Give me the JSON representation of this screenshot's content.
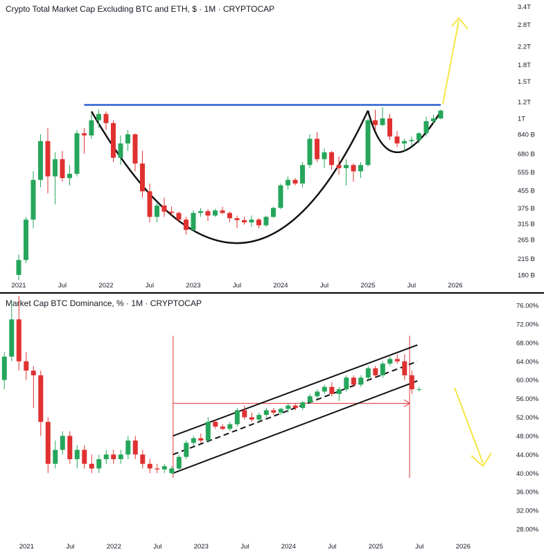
{
  "chart_data": [
    {
      "type": "candlestick",
      "title": "Crypto Total Market Cap Excluding BTC and ETH, $ · 1M · CRYPTOCAP",
      "scale": "log",
      "y_ticks": [
        {
          "label": "3.4T",
          "value": 3400
        },
        {
          "label": "2.8T",
          "value": 2800
        },
        {
          "label": "2.2T",
          "value": 2200
        },
        {
          "label": "1.8T",
          "value": 1800
        },
        {
          "label": "1.5T",
          "value": 1500
        },
        {
          "label": "1.2T",
          "value": 1200
        },
        {
          "label": "1T",
          "value": 1000
        },
        {
          "label": "840 B",
          "value": 840
        },
        {
          "label": "680 B",
          "value": 680
        },
        {
          "label": "555 B",
          "value": 555
        },
        {
          "label": "455 B",
          "value": 455
        },
        {
          "label": "375 B",
          "value": 375
        },
        {
          "label": "315 B",
          "value": 315
        },
        {
          "label": "265 B",
          "value": 265
        },
        {
          "label": "215 B",
          "value": 215
        },
        {
          "label": "180 B",
          "value": 180
        }
      ],
      "x_ticks": [
        {
          "label": "2021",
          "month": 0
        },
        {
          "label": "Jul",
          "month": 6
        },
        {
          "label": "2022",
          "month": 12
        },
        {
          "label": "Jul",
          "month": 18
        },
        {
          "label": "2023",
          "month": 24
        },
        {
          "label": "Jul",
          "month": 30
        },
        {
          "label": "2024",
          "month": 36
        },
        {
          "label": "Jul",
          "month": 42
        },
        {
          "label": "2025",
          "month": 48
        },
        {
          "label": "Jul",
          "month": 54
        },
        {
          "label": "2026",
          "month": 60
        }
      ],
      "up_color": "#26a65b",
      "down_color": "#e03131",
      "candles": [
        {
          "o": 180,
          "h": 225,
          "l": 170,
          "c": 212
        },
        {
          "o": 212,
          "h": 340,
          "l": 205,
          "c": 330
        },
        {
          "o": 330,
          "h": 560,
          "l": 300,
          "c": 510
        },
        {
          "o": 510,
          "h": 840,
          "l": 470,
          "c": 780
        },
        {
          "o": 780,
          "h": 900,
          "l": 440,
          "c": 530
        },
        {
          "o": 530,
          "h": 690,
          "l": 390,
          "c": 640
        },
        {
          "o": 640,
          "h": 700,
          "l": 500,
          "c": 520
        },
        {
          "o": 520,
          "h": 600,
          "l": 480,
          "c": 545
        },
        {
          "o": 545,
          "h": 880,
          "l": 530,
          "c": 850
        },
        {
          "o": 850,
          "h": 900,
          "l": 680,
          "c": 830
        },
        {
          "o": 830,
          "h": 1050,
          "l": 800,
          "c": 980
        },
        {
          "o": 980,
          "h": 1100,
          "l": 900,
          "c": 1050
        },
        {
          "o": 1050,
          "h": 1080,
          "l": 880,
          "c": 950
        },
        {
          "o": 950,
          "h": 980,
          "l": 620,
          "c": 650
        },
        {
          "o": 650,
          "h": 830,
          "l": 600,
          "c": 760
        },
        {
          "o": 760,
          "h": 880,
          "l": 700,
          "c": 840
        },
        {
          "o": 840,
          "h": 850,
          "l": 560,
          "c": 610
        },
        {
          "o": 610,
          "h": 700,
          "l": 420,
          "c": 450
        },
        {
          "o": 450,
          "h": 490,
          "l": 320,
          "c": 340
        },
        {
          "o": 340,
          "h": 400,
          "l": 320,
          "c": 385
        },
        {
          "o": 385,
          "h": 420,
          "l": 340,
          "c": 360
        },
        {
          "o": 360,
          "h": 380,
          "l": 345,
          "c": 355
        },
        {
          "o": 355,
          "h": 360,
          "l": 320,
          "c": 330
        },
        {
          "o": 330,
          "h": 340,
          "l": 280,
          "c": 295
        },
        {
          "o": 295,
          "h": 365,
          "l": 290,
          "c": 355
        },
        {
          "o": 355,
          "h": 375,
          "l": 340,
          "c": 362
        },
        {
          "o": 362,
          "h": 370,
          "l": 325,
          "c": 345
        },
        {
          "o": 345,
          "h": 372,
          "l": 340,
          "c": 365
        },
        {
          "o": 365,
          "h": 380,
          "l": 350,
          "c": 355
        },
        {
          "o": 355,
          "h": 360,
          "l": 320,
          "c": 335
        },
        {
          "o": 335,
          "h": 345,
          "l": 300,
          "c": 328
        },
        {
          "o": 328,
          "h": 340,
          "l": 312,
          "c": 320
        },
        {
          "o": 320,
          "h": 345,
          "l": 305,
          "c": 330
        },
        {
          "o": 330,
          "h": 335,
          "l": 300,
          "c": 310
        },
        {
          "o": 310,
          "h": 345,
          "l": 305,
          "c": 340
        },
        {
          "o": 340,
          "h": 380,
          "l": 335,
          "c": 375
        },
        {
          "o": 375,
          "h": 490,
          "l": 370,
          "c": 480
        },
        {
          "o": 480,
          "h": 530,
          "l": 460,
          "c": 510
        },
        {
          "o": 510,
          "h": 520,
          "l": 480,
          "c": 490
        },
        {
          "o": 490,
          "h": 620,
          "l": 470,
          "c": 600
        },
        {
          "o": 600,
          "h": 840,
          "l": 580,
          "c": 800
        },
        {
          "o": 800,
          "h": 860,
          "l": 620,
          "c": 640
        },
        {
          "o": 640,
          "h": 720,
          "l": 580,
          "c": 690
        },
        {
          "o": 690,
          "h": 700,
          "l": 570,
          "c": 600
        },
        {
          "o": 600,
          "h": 660,
          "l": 540,
          "c": 580
        },
        {
          "o": 580,
          "h": 640,
          "l": 480,
          "c": 600
        },
        {
          "o": 600,
          "h": 610,
          "l": 500,
          "c": 560
        },
        {
          "o": 560,
          "h": 620,
          "l": 520,
          "c": 600
        },
        {
          "o": 600,
          "h": 1000,
          "l": 590,
          "c": 980
        },
        {
          "o": 980,
          "h": 1100,
          "l": 880,
          "c": 930
        },
        {
          "o": 930,
          "h": 1130,
          "l": 920,
          "c": 1000
        },
        {
          "o": 1000,
          "h": 1050,
          "l": 790,
          "c": 820
        },
        {
          "o": 820,
          "h": 870,
          "l": 730,
          "c": 760
        },
        {
          "o": 760,
          "h": 800,
          "l": 700,
          "c": 780
        },
        {
          "o": 780,
          "h": 820,
          "l": 740,
          "c": 790
        },
        {
          "o": 790,
          "h": 860,
          "l": 760,
          "c": 850
        },
        {
          "o": 850,
          "h": 1020,
          "l": 820,
          "c": 970
        },
        {
          "o": 970,
          "h": 1040,
          "l": 940,
          "c": 1000
        },
        {
          "o": 1000,
          "h": 1100,
          "l": 990,
          "c": 1090
        }
      ],
      "annotations": {
        "resistance_line": {
          "value": 1160,
          "from_month": 9,
          "to_month": 58,
          "color": "#2a5fd4"
        },
        "cup_curve": {
          "from_month": 10,
          "bottom_month": 30,
          "to_month": 48,
          "start_value": 1080,
          "bottom_value": 255,
          "end_value": 1090
        },
        "handle_curve": {
          "from_month": 48,
          "bottom_month": 52,
          "to_month": 58,
          "start_value": 1090,
          "bottom_value": 690,
          "end_value": 1080
        },
        "arrow_color": "#f5e642"
      }
    },
    {
      "type": "candlestick",
      "title": "Market Cap BTC Dominance, % · 1M · CRYPTOCAP",
      "scale": "linear",
      "ylim": [
        26,
        78
      ],
      "y_ticks": [
        {
          "label": "76.00%",
          "value": 76
        },
        {
          "label": "72.00%",
          "value": 72
        },
        {
          "label": "68.00%",
          "value": 68
        },
        {
          "label": "64.00%",
          "value": 64
        },
        {
          "label": "60.00%",
          "value": 60
        },
        {
          "label": "56.00%",
          "value": 56
        },
        {
          "label": "52.00%",
          "value": 52
        },
        {
          "label": "48.00%",
          "value": 48
        },
        {
          "label": "44.00%",
          "value": 44
        },
        {
          "label": "40.00%",
          "value": 40
        },
        {
          "label": "36.00%",
          "value": 36
        },
        {
          "label": "32.00%",
          "value": 32
        },
        {
          "label": "28.00%",
          "value": 28
        }
      ],
      "x_ticks": [
        {
          "label": "2021",
          "month": 0
        },
        {
          "label": "Jul",
          "month": 6
        },
        {
          "label": "2022",
          "month": 12
        },
        {
          "label": "Jul",
          "month": 18
        },
        {
          "label": "2023",
          "month": 24
        },
        {
          "label": "Jul",
          "month": 30
        },
        {
          "label": "2024",
          "month": 36
        },
        {
          "label": "Jul",
          "month": 42
        },
        {
          "label": "2025",
          "month": 48
        },
        {
          "label": "Jul",
          "month": 54
        },
        {
          "label": "2026",
          "month": 60
        }
      ],
      "up_color": "#26a65b",
      "down_color": "#e03131",
      "candles": [
        {
          "o": 60,
          "h": 66,
          "l": 58,
          "c": 65
        },
        {
          "o": 65,
          "h": 77,
          "l": 64,
          "c": 73
        },
        {
          "o": 73,
          "h": 78,
          "l": 62,
          "c": 64
        },
        {
          "o": 64,
          "h": 66,
          "l": 60,
          "c": 62
        },
        {
          "o": 62,
          "h": 63,
          "l": 54,
          "c": 61
        },
        {
          "o": 61,
          "h": 62,
          "l": 48,
          "c": 51
        },
        {
          "o": 51,
          "h": 52,
          "l": 40,
          "c": 42
        },
        {
          "o": 42,
          "h": 47,
          "l": 41,
          "c": 45
        },
        {
          "o": 45,
          "h": 49,
          "l": 44,
          "c": 48
        },
        {
          "o": 48,
          "h": 49,
          "l": 42,
          "c": 43
        },
        {
          "o": 43,
          "h": 46,
          "l": 41,
          "c": 45
        },
        {
          "o": 45,
          "h": 46,
          "l": 41,
          "c": 42
        },
        {
          "o": 42,
          "h": 44,
          "l": 40,
          "c": 41
        },
        {
          "o": 41,
          "h": 44,
          "l": 40,
          "c": 43
        },
        {
          "o": 43,
          "h": 45,
          "l": 42,
          "c": 44
        },
        {
          "o": 44,
          "h": 45,
          "l": 42,
          "c": 43
        },
        {
          "o": 43,
          "h": 45,
          "l": 42,
          "c": 44
        },
        {
          "o": 44,
          "h": 48,
          "l": 43,
          "c": 47
        },
        {
          "o": 47,
          "h": 48,
          "l": 43,
          "c": 44
        },
        {
          "o": 44,
          "h": 45,
          "l": 41,
          "c": 42
        },
        {
          "o": 42,
          "h": 43,
          "l": 40,
          "c": 41
        },
        {
          "o": 41,
          "h": 42,
          "l": 40,
          "c": 40.8
        },
        {
          "o": 40.8,
          "h": 42,
          "l": 40,
          "c": 41.5
        },
        {
          "o": 40,
          "h": 41.5,
          "l": 39.8,
          "c": 41
        },
        {
          "o": 41,
          "h": 44,
          "l": 40.5,
          "c": 43.5
        },
        {
          "o": 43.5,
          "h": 47,
          "l": 43,
          "c": 46.5
        },
        {
          "o": 46.5,
          "h": 48,
          "l": 46,
          "c": 47.5
        },
        {
          "o": 47.5,
          "h": 48.5,
          "l": 46.5,
          "c": 47
        },
        {
          "o": 47,
          "h": 52,
          "l": 46.5,
          "c": 51
        },
        {
          "o": 51,
          "h": 51.5,
          "l": 49.5,
          "c": 50
        },
        {
          "o": 50,
          "h": 50.5,
          "l": 49.2,
          "c": 49.5
        },
        {
          "o": 49.5,
          "h": 51,
          "l": 49,
          "c": 50.5
        },
        {
          "o": 50.5,
          "h": 54,
          "l": 50,
          "c": 53.5
        },
        {
          "o": 53.5,
          "h": 54.5,
          "l": 51.5,
          "c": 52
        },
        {
          "o": 52,
          "h": 53,
          "l": 51,
          "c": 51.5
        },
        {
          "o": 51.5,
          "h": 53,
          "l": 51,
          "c": 52.5
        },
        {
          "o": 52.5,
          "h": 54,
          "l": 52,
          "c": 53.5
        },
        {
          "o": 53.5,
          "h": 54,
          "l": 52.5,
          "c": 53
        },
        {
          "o": 53,
          "h": 54,
          "l": 52.5,
          "c": 53.8
        },
        {
          "o": 53.8,
          "h": 55,
          "l": 53,
          "c": 54.5
        },
        {
          "o": 54.5,
          "h": 55,
          "l": 53.5,
          "c": 54
        },
        {
          "o": 54,
          "h": 55.5,
          "l": 53.5,
          "c": 55.2
        },
        {
          "o": 55.2,
          "h": 57,
          "l": 55,
          "c": 56.5
        },
        {
          "o": 56.5,
          "h": 58,
          "l": 56,
          "c": 57.5
        },
        {
          "o": 57.5,
          "h": 59,
          "l": 57,
          "c": 58.5
        },
        {
          "o": 58.5,
          "h": 59.5,
          "l": 56.5,
          "c": 57
        },
        {
          "o": 57,
          "h": 58.5,
          "l": 55.5,
          "c": 58
        },
        {
          "o": 58,
          "h": 61,
          "l": 57.5,
          "c": 60.5
        },
        {
          "o": 60.5,
          "h": 61,
          "l": 58.5,
          "c": 59
        },
        {
          "o": 59,
          "h": 61,
          "l": 58.5,
          "c": 60.5
        },
        {
          "o": 60.5,
          "h": 63,
          "l": 60,
          "c": 62.5
        },
        {
          "o": 62.5,
          "h": 63,
          "l": 60.5,
          "c": 61
        },
        {
          "o": 61,
          "h": 64,
          "l": 60.5,
          "c": 63.5
        },
        {
          "o": 63.5,
          "h": 65,
          "l": 63,
          "c": 64.5
        },
        {
          "o": 64.5,
          "h": 65.5,
          "l": 63.5,
          "c": 64
        },
        {
          "o": 64,
          "h": 65.5,
          "l": 60,
          "c": 61
        },
        {
          "o": 61,
          "h": 62,
          "l": 57,
          "c": 58
        },
        {
          "o": 58,
          "h": 58.5,
          "l": 57.5,
          "c": 58
        }
      ],
      "annotations": {
        "channel_start_month": 23,
        "channel_end_month": 56,
        "channel_upper": [
          48,
          67.5
        ],
        "channel_mid": [
          44,
          64
        ],
        "channel_lower": [
          40,
          59.8
        ],
        "horizontal_level": 55,
        "vertical_red_months": [
          23,
          55.5
        ],
        "arrow_color": "#f5e642"
      }
    }
  ]
}
